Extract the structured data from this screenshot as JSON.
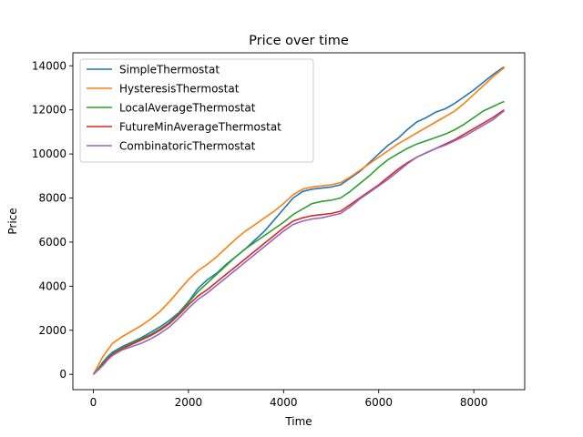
{
  "chart_data": {
    "type": "line",
    "title": "Price over time",
    "xlabel": "Time",
    "ylabel": "Price",
    "xlim": [
      -430,
      9070
    ],
    "ylim": [
      -695,
      14590
    ],
    "xticks": [
      0,
      2000,
      4000,
      6000,
      8000
    ],
    "yticks": [
      0,
      2000,
      4000,
      6000,
      8000,
      10000,
      12000,
      14000
    ],
    "legend_position": "upper-left",
    "grid": false,
    "series": [
      {
        "name": "SimpleThermostat",
        "color": "#1f77b4",
        "x": [
          0,
          100,
          200,
          300,
          400,
          600,
          800,
          1000,
          1200,
          1400,
          1600,
          1800,
          2000,
          2200,
          2400,
          2600,
          2800,
          3000,
          3200,
          3400,
          3600,
          3800,
          4000,
          4200,
          4400,
          4600,
          4800,
          5000,
          5200,
          5400,
          5600,
          5800,
          6000,
          6200,
          6400,
          6600,
          6800,
          7000,
          7200,
          7400,
          7600,
          7800,
          8000,
          8200,
          8400,
          8600,
          8640
        ],
        "y": [
          0,
          250,
          550,
          800,
          1000,
          1250,
          1450,
          1650,
          1900,
          2150,
          2450,
          2800,
          3300,
          3900,
          4300,
          4600,
          5000,
          5350,
          5700,
          6100,
          6500,
          7000,
          7500,
          8000,
          8300,
          8400,
          8450,
          8500,
          8600,
          8900,
          9200,
          9600,
          10000,
          10400,
          10700,
          11100,
          11450,
          11650,
          11900,
          12050,
          12300,
          12600,
          12900,
          13250,
          13600,
          13900,
          13950
        ]
      },
      {
        "name": "HysteresisThermostat",
        "color": "#ff7f0e",
        "x": [
          0,
          100,
          200,
          300,
          400,
          600,
          800,
          1000,
          1200,
          1400,
          1600,
          1800,
          2000,
          2200,
          2400,
          2600,
          2800,
          3000,
          3200,
          3400,
          3600,
          3800,
          4000,
          4200,
          4400,
          4600,
          4800,
          5000,
          5200,
          5400,
          5600,
          5800,
          6000,
          6200,
          6400,
          6600,
          6800,
          7000,
          7200,
          7400,
          7600,
          7800,
          8000,
          8200,
          8400,
          8600,
          8640
        ],
        "y": [
          0,
          400,
          800,
          1100,
          1400,
          1700,
          1950,
          2200,
          2500,
          2850,
          3300,
          3800,
          4300,
          4700,
          5000,
          5350,
          5750,
          6150,
          6500,
          6800,
          7100,
          7400,
          7750,
          8150,
          8400,
          8500,
          8550,
          8600,
          8700,
          8950,
          9250,
          9550,
          9850,
          10150,
          10450,
          10700,
          10950,
          11200,
          11450,
          11700,
          11950,
          12300,
          12700,
          13100,
          13500,
          13850,
          13900
        ]
      },
      {
        "name": "LocalAverageThermostat",
        "color": "#2ca02c",
        "x": [
          0,
          100,
          200,
          300,
          400,
          600,
          800,
          1000,
          1200,
          1400,
          1600,
          1800,
          2000,
          2200,
          2400,
          2600,
          2800,
          3000,
          3200,
          3400,
          3600,
          3800,
          4000,
          4200,
          4400,
          4600,
          4800,
          5000,
          5200,
          5400,
          5600,
          5800,
          6000,
          6200,
          6400,
          6600,
          6800,
          7000,
          7200,
          7400,
          7600,
          7800,
          8000,
          8200,
          8400,
          8600,
          8640
        ],
        "y": [
          0,
          250,
          500,
          750,
          950,
          1200,
          1400,
          1600,
          1800,
          2050,
          2350,
          2750,
          3250,
          3750,
          4150,
          4550,
          4950,
          5350,
          5700,
          6000,
          6300,
          6600,
          6900,
          7250,
          7500,
          7750,
          7850,
          7900,
          8000,
          8300,
          8650,
          9000,
          9400,
          9750,
          10000,
          10250,
          10450,
          10600,
          10750,
          10900,
          11100,
          11350,
          11650,
          11950,
          12150,
          12350,
          12380
        ]
      },
      {
        "name": "FutureMinAverageThermostat",
        "color": "#d62728",
        "x": [
          0,
          100,
          200,
          300,
          400,
          600,
          800,
          1000,
          1200,
          1400,
          1600,
          1800,
          2000,
          2200,
          2400,
          2600,
          2800,
          3000,
          3200,
          3400,
          3600,
          3800,
          4000,
          4200,
          4400,
          4600,
          4800,
          5000,
          5200,
          5400,
          5600,
          5800,
          6000,
          6200,
          6400,
          6600,
          6800,
          7000,
          7200,
          7400,
          7600,
          7800,
          8000,
          8200,
          8400,
          8600,
          8640
        ],
        "y": [
          0,
          200,
          450,
          700,
          900,
          1150,
          1350,
          1550,
          1750,
          2000,
          2300,
          2700,
          3150,
          3550,
          3850,
          4200,
          4550,
          4900,
          5250,
          5600,
          5950,
          6300,
          6650,
          6950,
          7100,
          7200,
          7250,
          7300,
          7400,
          7700,
          8000,
          8300,
          8600,
          8950,
          9300,
          9600,
          9850,
          10050,
          10250,
          10450,
          10650,
          10900,
          11150,
          11400,
          11650,
          11950,
          12000
        ]
      },
      {
        "name": "CombinatoricThermostat",
        "color": "#9467bd",
        "x": [
          0,
          100,
          200,
          300,
          400,
          600,
          800,
          1000,
          1200,
          1400,
          1600,
          1800,
          2000,
          2200,
          2400,
          2600,
          2800,
          3000,
          3200,
          3400,
          3600,
          3800,
          4000,
          4200,
          4400,
          4600,
          4800,
          5000,
          5200,
          5400,
          5600,
          5800,
          6000,
          6200,
          6400,
          6600,
          6800,
          7000,
          7200,
          7400,
          7600,
          7800,
          8000,
          8200,
          8400,
          8600,
          8640
        ],
        "y": [
          0,
          200,
          400,
          650,
          850,
          1100,
          1250,
          1400,
          1600,
          1850,
          2150,
          2550,
          3000,
          3400,
          3700,
          4050,
          4400,
          4750,
          5100,
          5450,
          5800,
          6150,
          6500,
          6800,
          6950,
          7050,
          7100,
          7200,
          7300,
          7600,
          7950,
          8250,
          8550,
          8850,
          9200,
          9550,
          9850,
          10050,
          10250,
          10400,
          10600,
          10800,
          11050,
          11300,
          11550,
          11900,
          11950
        ]
      }
    ]
  }
}
